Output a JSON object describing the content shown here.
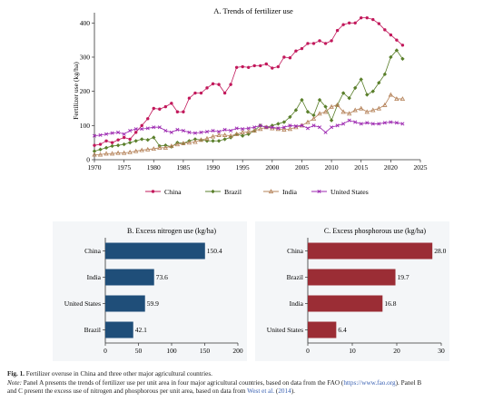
{
  "chart_data": [
    {
      "type": "line",
      "title": "A. Trends of fertilizer use",
      "ylabel": "Fertilizer use (kg/ha)",
      "xlabel": "",
      "xlim": [
        1970,
        2025
      ],
      "ylim": [
        0,
        430
      ],
      "xticks": [
        1970,
        1975,
        1980,
        1985,
        1990,
        1995,
        2000,
        2005,
        2010,
        2015,
        2020,
        2025
      ],
      "yticks": [
        0,
        100,
        200,
        300,
        400
      ],
      "grid": false,
      "legend_position": "bottom",
      "series": [
        {
          "name": "China",
          "color": "#c2185b",
          "marker": "circle",
          "x": [
            1970,
            1971,
            1972,
            1973,
            1974,
            1975,
            1976,
            1977,
            1978,
            1979,
            1980,
            1981,
            1982,
            1983,
            1984,
            1985,
            1986,
            1987,
            1988,
            1989,
            1990,
            1991,
            1992,
            1993,
            1994,
            1995,
            1996,
            1997,
            1998,
            1999,
            2000,
            2001,
            2002,
            2003,
            2004,
            2005,
            2006,
            2007,
            2008,
            2009,
            2010,
            2011,
            2012,
            2013,
            2014,
            2015,
            2016,
            2017,
            2018,
            2019,
            2020,
            2021,
            2022
          ],
          "y": [
            42,
            45,
            55,
            50,
            58,
            65,
            60,
            80,
            100,
            120,
            150,
            148,
            155,
            165,
            140,
            140,
            180,
            195,
            195,
            210,
            222,
            220,
            195,
            220,
            270,
            272,
            270,
            275,
            275,
            280,
            268,
            272,
            300,
            298,
            318,
            325,
            340,
            340,
            348,
            340,
            348,
            378,
            395,
            400,
            400,
            415,
            415,
            410,
            398,
            380,
            365,
            350,
            335
          ]
        },
        {
          "name": "Brazil",
          "color": "#5a7f2b",
          "marker": "diamond",
          "x": [
            1970,
            1971,
            1972,
            1973,
            1974,
            1975,
            1976,
            1977,
            1978,
            1979,
            1980,
            1981,
            1982,
            1983,
            1984,
            1985,
            1986,
            1987,
            1988,
            1989,
            1990,
            1991,
            1992,
            1993,
            1994,
            1995,
            1996,
            1997,
            1998,
            1999,
            2000,
            2001,
            2002,
            2003,
            2004,
            2005,
            2006,
            2007,
            2008,
            2009,
            2010,
            2011,
            2012,
            2013,
            2014,
            2015,
            2016,
            2017,
            2018,
            2019,
            2020,
            2021,
            2022
          ],
          "y": [
            25,
            30,
            35,
            40,
            42,
            45,
            50,
            55,
            60,
            58,
            65,
            40,
            42,
            38,
            50,
            48,
            55,
            60,
            58,
            55,
            55,
            55,
            60,
            65,
            75,
            70,
            75,
            85,
            100,
            95,
            100,
            105,
            110,
            125,
            145,
            175,
            140,
            130,
            175,
            155,
            115,
            160,
            195,
            180,
            210,
            235,
            190,
            200,
            225,
            250,
            300,
            320,
            295
          ]
        },
        {
          "name": "India",
          "color": "#b5835a",
          "marker": "triangle",
          "x": [
            1970,
            1971,
            1972,
            1973,
            1974,
            1975,
            1976,
            1977,
            1978,
            1979,
            1980,
            1981,
            1982,
            1983,
            1984,
            1985,
            1986,
            1987,
            1988,
            1989,
            1990,
            1991,
            1992,
            1993,
            1994,
            1995,
            1996,
            1997,
            1998,
            1999,
            2000,
            2001,
            2002,
            2003,
            2004,
            2005,
            2006,
            2007,
            2008,
            2009,
            2010,
            2011,
            2012,
            2013,
            2014,
            2015,
            2016,
            2017,
            2018,
            2019,
            2020,
            2021,
            2022
          ],
          "y": [
            15,
            15,
            18,
            18,
            20,
            20,
            22,
            25,
            28,
            30,
            32,
            35,
            35,
            40,
            45,
            48,
            50,
            52,
            58,
            62,
            68,
            72,
            72,
            70,
            75,
            80,
            82,
            85,
            90,
            95,
            92,
            90,
            88,
            90,
            95,
            100,
            110,
            120,
            135,
            140,
            155,
            160,
            140,
            135,
            145,
            150,
            140,
            145,
            150,
            160,
            190,
            178,
            178
          ]
        },
        {
          "name": "United States",
          "color": "#9c27b0",
          "marker": "cross",
          "x": [
            1970,
            1971,
            1972,
            1973,
            1974,
            1975,
            1976,
            1977,
            1978,
            1979,
            1980,
            1981,
            1982,
            1983,
            1984,
            1985,
            1986,
            1987,
            1988,
            1989,
            1990,
            1991,
            1992,
            1993,
            1994,
            1995,
            1996,
            1997,
            1998,
            1999,
            2000,
            2001,
            2002,
            2003,
            2004,
            2005,
            2006,
            2007,
            2008,
            2009,
            2010,
            2011,
            2012,
            2013,
            2014,
            2015,
            2016,
            2017,
            2018,
            2019,
            2020,
            2021,
            2022
          ],
          "y": [
            70,
            72,
            75,
            78,
            80,
            75,
            85,
            90,
            90,
            92,
            95,
            95,
            85,
            80,
            88,
            85,
            80,
            78,
            80,
            82,
            85,
            82,
            88,
            85,
            92,
            90,
            92,
            95,
            100,
            95,
            95,
            92,
            95,
            100,
            98,
            100,
            92,
            100,
            95,
            80,
            95,
            100,
            105,
            115,
            110,
            105,
            108,
            105,
            105,
            108,
            110,
            108,
            105
          ]
        }
      ]
    },
    {
      "type": "bar",
      "orientation": "horizontal",
      "title": "B. Excess nitrogen use (kg/ha)",
      "categories": [
        "China",
        "India",
        "United States",
        "Brazil"
      ],
      "values": [
        150.4,
        73.6,
        59.9,
        42.1
      ],
      "value_labels": [
        "150.4",
        "73.6",
        "59.9",
        "42.1"
      ],
      "xlim": [
        0,
        200
      ],
      "xticks": [
        0,
        50,
        100,
        150,
        200
      ],
      "color": "#1f4e79",
      "grid": false
    },
    {
      "type": "bar",
      "orientation": "horizontal",
      "title": "C. Excess phosphorous use (kg/ha)",
      "categories": [
        "China",
        "Brazil",
        "India",
        "United States"
      ],
      "values": [
        28.0,
        19.7,
        16.8,
        6.4
      ],
      "value_labels": [
        "28.0",
        "19.7",
        "16.8",
        "6.4"
      ],
      "xlim": [
        0,
        30
      ],
      "xticks": [
        0,
        10,
        20,
        30
      ],
      "color": "#9b2d35",
      "grid": false
    }
  ],
  "caption": {
    "label": "Fig. 1.",
    "title": "Fertilizer overuse in China and three other major agricultural countries.",
    "note_label": "Note:",
    "note_1": "Panel A presents the trends of fertilizer use per unit area in four major agricultural countries, based on data from the FAO (",
    "note_link_1": "https://www.fao.org",
    "note_2": "). Panel B",
    "note_3": "and C present the excess use of nitrogen and phosphorous per unit area, based on data from",
    "note_link_2": "West et al.",
    "note_4": "(",
    "note_link_3": "2014",
    "note_5": ")."
  }
}
